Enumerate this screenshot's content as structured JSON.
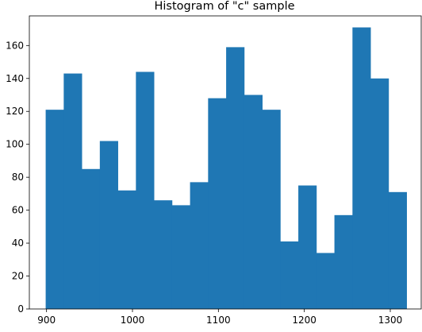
{
  "chart_data": {
    "type": "bar",
    "title": "Histogram of \"c\" sample",
    "xlabel": "",
    "ylabel": "",
    "bin_edges": [
      899,
      920,
      941,
      962,
      983,
      1004,
      1025,
      1046,
      1067,
      1088,
      1109,
      1130,
      1151,
      1172,
      1193,
      1214,
      1235,
      1256,
      1277,
      1298,
      1319
    ],
    "values": [
      121,
      143,
      85,
      102,
      72,
      144,
      66,
      63,
      77,
      128,
      159,
      130,
      121,
      41,
      75,
      34,
      57,
      171,
      140,
      71
    ],
    "xlim": [
      880,
      1336
    ],
    "ylim": [
      0,
      178
    ],
    "xticks": [
      900,
      1000,
      1100,
      1200,
      1300
    ],
    "yticks": [
      0,
      20,
      40,
      60,
      80,
      100,
      120,
      140,
      160
    ],
    "grid": false,
    "bar_color": "#1f77b4"
  }
}
